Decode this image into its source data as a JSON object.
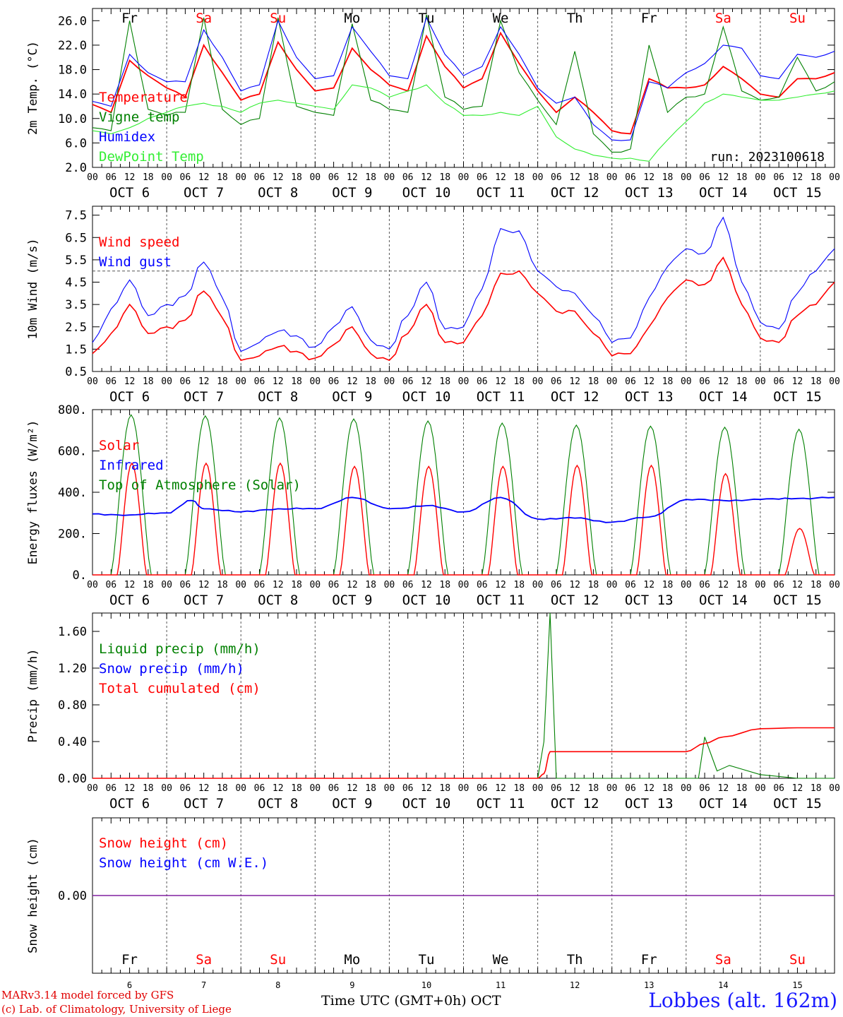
{
  "chart_data": [
    {
      "type": "line",
      "ylabel": "2m Temp. (°C)",
      "ylim": [
        2,
        28
      ],
      "yticks": [
        "2.0",
        "6.0",
        "10.0",
        "14.0",
        "18.0",
        "22.0",
        "26.0"
      ],
      "legend": "top-left",
      "annotation": "run: 2023100618",
      "x": [
        "10-06 00",
        "10-06 06",
        "10-06 12",
        "10-06 18",
        "10-07 00",
        "10-07 06",
        "10-07 12",
        "10-07 18",
        "10-08 00",
        "10-08 06",
        "10-08 12",
        "10-08 18",
        "10-09 00",
        "10-09 06",
        "10-09 12",
        "10-09 18",
        "10-10 00",
        "10-10 06",
        "10-10 12",
        "10-10 18",
        "10-11 00",
        "10-11 06",
        "10-11 12",
        "10-11 18",
        "10-12 00",
        "10-12 06",
        "10-12 12",
        "10-12 18",
        "10-13 00",
        "10-13 06",
        "10-13 12",
        "10-13 18",
        "10-14 00",
        "10-14 06",
        "10-14 12",
        "10-14 18",
        "10-15 00",
        "10-15 06",
        "10-15 12",
        "10-15 18",
        "10-16 00"
      ],
      "series": [
        {
          "name": "Temperature",
          "color": "#ff0000",
          "values": [
            12.3,
            11.0,
            19.5,
            17.0,
            15.0,
            13.5,
            22.0,
            17.5,
            13.0,
            14.0,
            22.5,
            18.0,
            14.5,
            15.0,
            21.5,
            18.0,
            15.5,
            14.5,
            23.5,
            18.5,
            15.0,
            16.5,
            24.0,
            19.0,
            14.5,
            11.0,
            13.5,
            11.0,
            8.0,
            7.5,
            16.5,
            15.0,
            15.0,
            15.5,
            18.5,
            16.5,
            14.0,
            13.5,
            16.5,
            16.5,
            17.5
          ]
        },
        {
          "name": "Vigne temp",
          "color": "#008000",
          "values": [
            8.5,
            8.0,
            26.0,
            11.5,
            10.5,
            11.0,
            26.5,
            11.5,
            9.0,
            10.0,
            26.5,
            12.0,
            11.0,
            10.5,
            25.5,
            13.0,
            11.5,
            11.0,
            27.0,
            13.5,
            11.5,
            12.0,
            26.0,
            17.5,
            13.0,
            9.0,
            21.0,
            7.5,
            4.5,
            5.0,
            22.0,
            11.0,
            13.5,
            14.0,
            25.0,
            14.5,
            13.0,
            13.5,
            20.0,
            14.5,
            16.0
          ]
        },
        {
          "name": "Humidex",
          "color": "#0000ff",
          "values": [
            12.8,
            12.0,
            20.5,
            17.5,
            16.0,
            16.0,
            24.5,
            20.0,
            14.5,
            15.5,
            26.0,
            20.0,
            16.5,
            17.0,
            25.0,
            21.0,
            17.0,
            16.5,
            26.5,
            20.5,
            17.0,
            18.5,
            25.0,
            20.5,
            15.0,
            12.5,
            13.5,
            9.0,
            6.5,
            6.5,
            16.0,
            15.0,
            17.5,
            19.0,
            22.0,
            21.5,
            17.0,
            16.5,
            20.5,
            20.0,
            21.0
          ]
        },
        {
          "name": "DewPoint Temp",
          "color": "#33ee33",
          "values": [
            8.0,
            7.5,
            8.5,
            10.0,
            11.0,
            12.0,
            12.5,
            12.0,
            11.0,
            12.5,
            13.0,
            12.5,
            12.0,
            11.5,
            15.5,
            15.0,
            13.5,
            14.5,
            15.5,
            12.5,
            10.5,
            10.5,
            11.0,
            10.5,
            12.0,
            7.0,
            5.0,
            4.0,
            3.5,
            3.5,
            3.0,
            6.5,
            9.5,
            12.5,
            14.0,
            13.5,
            13.0,
            13.0,
            13.5,
            14.0,
            14.5
          ]
        }
      ]
    },
    {
      "type": "line",
      "ylabel": "10m Wind (m/s)",
      "ylim": [
        0.5,
        7.9
      ],
      "yticks": [
        "0.5",
        "1.5",
        "2.5",
        "3.5",
        "4.5",
        "5.5",
        "6.5",
        "7.5"
      ],
      "reference_line": 5.0,
      "legend": "top-left",
      "x": [
        "10-06 00",
        "10-06 06",
        "10-06 12",
        "10-06 18",
        "10-07 00",
        "10-07 06",
        "10-07 12",
        "10-07 18",
        "10-08 00",
        "10-08 06",
        "10-08 12",
        "10-08 18",
        "10-09 00",
        "10-09 06",
        "10-09 12",
        "10-09 18",
        "10-10 00",
        "10-10 06",
        "10-10 12",
        "10-10 18",
        "10-11 00",
        "10-11 06",
        "10-11 12",
        "10-11 18",
        "10-12 00",
        "10-12 06",
        "10-12 12",
        "10-12 18",
        "10-13 00",
        "10-13 06",
        "10-13 12",
        "10-13 18",
        "10-14 00",
        "10-14 06",
        "10-14 12",
        "10-14 18",
        "10-15 00",
        "10-15 06",
        "10-15 12",
        "10-15 18",
        "10-16 00"
      ],
      "series": [
        {
          "name": "Wind speed",
          "color": "#ff0000",
          "values": [
            1.3,
            2.2,
            3.5,
            2.2,
            2.5,
            2.8,
            4.1,
            2.9,
            1.0,
            1.2,
            1.6,
            1.4,
            1.1,
            1.7,
            2.5,
            1.3,
            1.0,
            2.2,
            3.5,
            1.8,
            1.8,
            3.0,
            4.9,
            5.0,
            4.0,
            3.2,
            3.2,
            2.2,
            1.2,
            1.3,
            2.5,
            3.8,
            4.6,
            4.4,
            5.6,
            3.5,
            2.0,
            1.8,
            3.0,
            3.5,
            4.5
          ]
        },
        {
          "name": "Wind gust",
          "color": "#0000ff",
          "values": [
            1.8,
            3.3,
            4.6,
            3.0,
            3.5,
            3.9,
            5.4,
            3.8,
            1.4,
            1.8,
            2.3,
            2.1,
            1.6,
            2.5,
            3.4,
            1.9,
            1.5,
            3.0,
            4.5,
            2.4,
            2.5,
            4.2,
            6.9,
            6.8,
            5.0,
            4.3,
            4.0,
            3.0,
            1.8,
            2.0,
            3.8,
            5.2,
            6.0,
            5.8,
            7.4,
            4.5,
            2.7,
            2.4,
            4.0,
            5.0,
            6.0
          ]
        }
      ]
    },
    {
      "type": "line",
      "ylabel": "Energy fluxes (W/m²)",
      "ylim": [
        0,
        800
      ],
      "yticks": [
        "0.",
        "200.",
        "400.",
        "600.",
        "800."
      ],
      "legend": "top-left",
      "solar_peaks": [
        540,
        540,
        540,
        525,
        525,
        525,
        530,
        530,
        490,
        225
      ],
      "toa_peaks": [
        775,
        770,
        760,
        755,
        745,
        735,
        725,
        720,
        715,
        705
      ],
      "infrared_points": {
        "x": [
          "10-06 00",
          "10-06 12",
          "10-07 00",
          "10-07 08",
          "10-07 12",
          "10-08 00",
          "10-08 12",
          "10-09 00",
          "10-09 12",
          "10-10 00",
          "10-10 12",
          "10-11 00",
          "10-11 12",
          "10-12 00",
          "10-12 12",
          "10-13 00",
          "10-13 12",
          "10-14 00",
          "10-14 12",
          "10-15 00",
          "10-15 12",
          "10-16 00"
        ],
        "values": [
          295,
          290,
          300,
          360,
          320,
          305,
          320,
          320,
          375,
          320,
          335,
          305,
          375,
          270,
          275,
          255,
          280,
          365,
          360,
          365,
          370,
          375
        ]
      },
      "series": [
        {
          "name": "Solar",
          "color": "#ff0000"
        },
        {
          "name": "Infrared",
          "color": "#0000ff"
        },
        {
          "name": "Top of Atmosphere (Solar)",
          "color": "#008000"
        }
      ]
    },
    {
      "type": "line",
      "ylabel": "Precip (mm/h)",
      "ylim": [
        0,
        1.8
      ],
      "yticks": [
        "0.00",
        "0.40",
        "0.80",
        "1.20",
        "1.60"
      ],
      "legend": "top-left",
      "liquid_points": {
        "x": [
          "10-06 00",
          "10-12 00",
          "10-12 02",
          "10-12 04",
          "10-12 06",
          "10-14 00",
          "10-14 04",
          "10-14 06",
          "10-14 10",
          "10-14 14",
          "10-14 18",
          "10-15 00",
          "10-15 12",
          "10-16 00"
        ],
        "values": [
          0.0,
          0.0,
          0.4,
          1.8,
          0.0,
          0.0,
          0.0,
          0.45,
          0.08,
          0.14,
          0.1,
          0.04,
          0.0,
          0.0
        ]
      },
      "cumulated_points": {
        "x": [
          "10-06 00",
          "10-12 00",
          "10-12 02",
          "10-12 04",
          "10-14 00",
          "10-14 06",
          "10-14 12",
          "10-15 00",
          "10-15 12",
          "10-16 00"
        ],
        "values": [
          0.0,
          0.0,
          0.05,
          0.29,
          0.29,
          0.38,
          0.45,
          0.54,
          0.55,
          0.55
        ]
      },
      "series": [
        {
          "name": "Liquid precip (mm/h)",
          "color": "#008000"
        },
        {
          "name": "Snow precip (mm/h)",
          "color": "#0000ff"
        },
        {
          "name": "Total cumulated (cm)",
          "color": "#ff0000"
        }
      ]
    },
    {
      "type": "line",
      "ylabel": "Snow height (cm)",
      "ylim": [
        -1,
        1
      ],
      "yticks": [
        "0.00"
      ],
      "legend": "top-left",
      "series": [
        {
          "name": "Snow height (cm)",
          "color": "#ff0000",
          "values": [
            0,
            0
          ]
        },
        {
          "name": "Snow height (cm W.E.)",
          "color": "#0000ff",
          "values": [
            0,
            0
          ]
        }
      ],
      "line_color": "#8020a0"
    }
  ],
  "days": [
    {
      "abbr": "Fr",
      "date": "OCT  6",
      "num": "6",
      "weekend": false
    },
    {
      "abbr": "Sa",
      "date": "OCT  7",
      "num": "7",
      "weekend": true
    },
    {
      "abbr": "Su",
      "date": "OCT  8",
      "num": "8",
      "weekend": true
    },
    {
      "abbr": "Mo",
      "date": "OCT  9",
      "num": "9",
      "weekend": false
    },
    {
      "abbr": "Tu",
      "date": "OCT 10",
      "num": "10",
      "weekend": false
    },
    {
      "abbr": "We",
      "date": "OCT 11",
      "num": "11",
      "weekend": false
    },
    {
      "abbr": "Th",
      "date": "OCT 12",
      "num": "12",
      "weekend": false
    },
    {
      "abbr": "Fr",
      "date": "OCT 13",
      "num": "13",
      "weekend": false
    },
    {
      "abbr": "Sa",
      "date": "OCT 14",
      "num": "14",
      "weekend": true
    },
    {
      "abbr": "Su",
      "date": "OCT 15",
      "num": "15",
      "weekend": true
    }
  ],
  "hour_ticks": [
    "00",
    "06",
    "12",
    "18"
  ],
  "last_hour_tick": "00",
  "xlabel": "Time UTC (GMT+0h)",
  "xlabel_month": "OCT",
  "credit_line1": "MARv3.14 model forced by GFS",
  "credit_line2": "(c) Lab. of Climatology, University of Liege",
  "station": "Lobbes (alt. 162m)",
  "colors": {
    "weekday": "#000000",
    "weekend": "#ff0000"
  }
}
